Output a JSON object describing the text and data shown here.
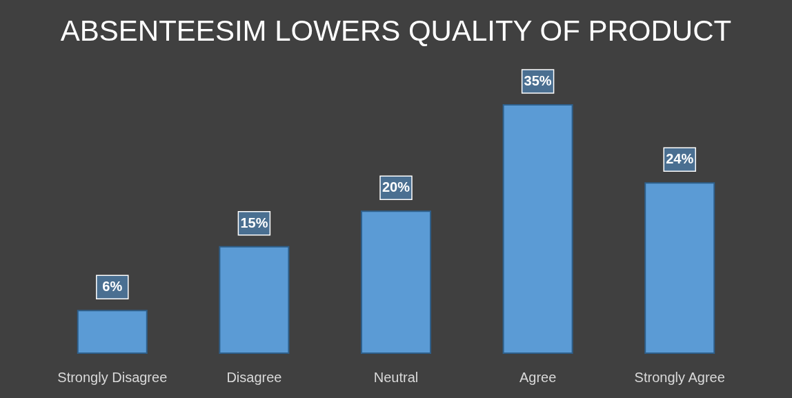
{
  "chart_data": {
    "type": "bar",
    "title": "ABSENTEESIM LOWERS QUALITY OF PRODUCT",
    "categories": [
      "Strongly Disagree",
      "Disagree",
      "Neutral",
      "Agree",
      "Strongly Agree"
    ],
    "values": [
      6,
      15,
      20,
      35,
      24
    ],
    "color": "#5b9bd5",
    "data_labels": true,
    "value_labels": [
      "6%",
      "15%",
      "20%",
      "35%",
      "24%"
    ]
  }
}
